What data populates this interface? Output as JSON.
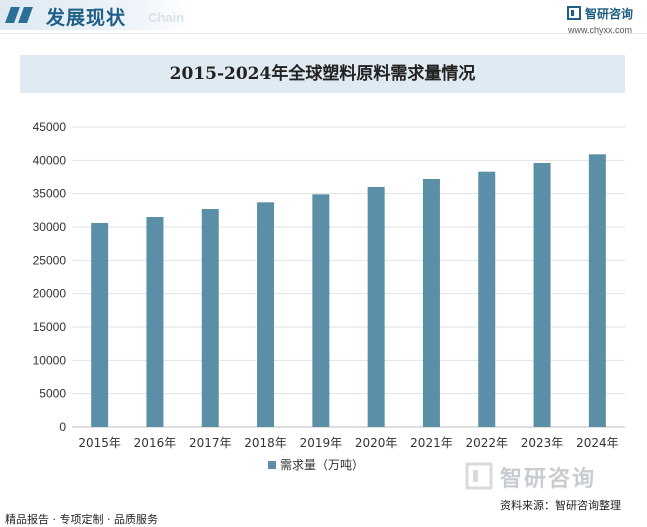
{
  "header": {
    "title": "发展现状",
    "subtitle": "Chain",
    "logo_name": "智研咨询",
    "logo_url": "www.chyxx.com"
  },
  "chart_data": {
    "type": "bar",
    "title": "2015-2024年全球塑料原料需求量情况",
    "categories": [
      "2015年",
      "2016年",
      "2017年",
      "2018年",
      "2019年",
      "2020年",
      "2021年",
      "2022年",
      "2023年",
      "2024年"
    ],
    "series": [
      {
        "name": "需求量（万吨）",
        "values": [
          30600,
          31500,
          32700,
          33700,
          34900,
          36000,
          37200,
          38300,
          39600,
          40900
        ]
      }
    ],
    "ylim": [
      0,
      45000
    ],
    "yticks": [
      0,
      5000,
      10000,
      15000,
      20000,
      25000,
      30000,
      35000,
      40000,
      45000
    ],
    "grid": true,
    "legend_position": "bottom",
    "bar_color": "#5b8fa8"
  },
  "footer": {
    "left": "精品报告 · 专项定制 · 品质服务",
    "right": "资料来源：智研咨询整理",
    "watermark": "智研咨询"
  }
}
